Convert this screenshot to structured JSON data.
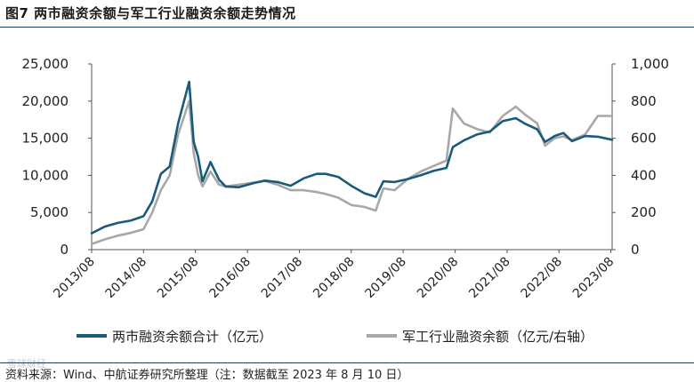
{
  "figure": {
    "title": "图7 两市融资余额与军工行业融资余额走势情况",
    "source": "资料来源：Wind、中航证券研究所整理（注：数据截至 2023 年 8 月 10 日）",
    "watermark": "雪球财经"
  },
  "colors": {
    "total_series": "#1a5a7a",
    "military_series": "#a8a8a8",
    "rule": "#1c3f5e",
    "axis": "#555555"
  },
  "chart_data": {
    "type": "line",
    "title": "图7 两市融资余额与军工行业融资余额走势情况",
    "x_type": "date",
    "xlim": [
      "2013-08-01",
      "2023-08-10"
    ],
    "x_tick_labels": [
      "2013/08",
      "2014/08",
      "2015/08",
      "2016/08",
      "2017/08",
      "2018/08",
      "2019/08",
      "2020/08",
      "2021/08",
      "2022/08",
      "2023/08"
    ],
    "x_ticks": [
      "2013-08-01",
      "2014-08-01",
      "2015-08-01",
      "2016-08-01",
      "2017-08-01",
      "2018-08-01",
      "2019-08-01",
      "2020-08-01",
      "2021-08-01",
      "2022-08-01",
      "2023-08-01"
    ],
    "y_left": {
      "label": "",
      "ylim": [
        0,
        25000
      ],
      "ticks": [
        0,
        5000,
        10000,
        15000,
        20000,
        25000
      ],
      "tick_labels": [
        "0",
        "5,000",
        "10,000",
        "15,000",
        "20,000",
        "25,000"
      ]
    },
    "y_right": {
      "label": "",
      "ylim": [
        0,
        1000
      ],
      "ticks": [
        0,
        200,
        400,
        600,
        800,
        1000
      ],
      "tick_labels": [
        "0",
        "200",
        "400",
        "600",
        "800",
        "1,000"
      ]
    },
    "grid": false,
    "legend_position": "bottom",
    "series": [
      {
        "name": "两市融资余额合计（亿元）",
        "axis": "left",
        "points": [
          [
            "2013-08-01",
            2200
          ],
          [
            "2013-11-01",
            3100
          ],
          [
            "2014-02-01",
            3600
          ],
          [
            "2014-05-01",
            3900
          ],
          [
            "2014-08-01",
            4500
          ],
          [
            "2014-10-01",
            6500
          ],
          [
            "2014-12-01",
            10200
          ],
          [
            "2015-02-01",
            11200
          ],
          [
            "2015-04-01",
            17000
          ],
          [
            "2015-06-18",
            22600
          ],
          [
            "2015-07-20",
            14500
          ],
          [
            "2015-08-20",
            12500
          ],
          [
            "2015-09-20",
            9200
          ],
          [
            "2015-11-15",
            11800
          ],
          [
            "2016-01-15",
            9400
          ],
          [
            "2016-03-01",
            8500
          ],
          [
            "2016-06-01",
            8400
          ],
          [
            "2016-09-01",
            8900
          ],
          [
            "2016-12-01",
            9300
          ],
          [
            "2017-03-01",
            9100
          ],
          [
            "2017-06-01",
            8600
          ],
          [
            "2017-09-01",
            9600
          ],
          [
            "2017-12-01",
            10200
          ],
          [
            "2018-02-01",
            10200
          ],
          [
            "2018-05-01",
            9800
          ],
          [
            "2018-08-01",
            8600
          ],
          [
            "2018-11-01",
            7600
          ],
          [
            "2019-01-20",
            7100
          ],
          [
            "2019-03-15",
            9200
          ],
          [
            "2019-06-01",
            9100
          ],
          [
            "2019-09-01",
            9500
          ],
          [
            "2019-12-01",
            10000
          ],
          [
            "2020-03-01",
            10600
          ],
          [
            "2020-06-01",
            11000
          ],
          [
            "2020-07-15",
            13800
          ],
          [
            "2020-10-01",
            14700
          ],
          [
            "2021-01-01",
            15500
          ],
          [
            "2021-04-01",
            15900
          ],
          [
            "2021-07-01",
            17300
          ],
          [
            "2021-10-01",
            17700
          ],
          [
            "2021-12-01",
            17000
          ],
          [
            "2022-03-01",
            16200
          ],
          [
            "2022-04-25",
            14500
          ],
          [
            "2022-07-01",
            15300
          ],
          [
            "2022-09-01",
            15700
          ],
          [
            "2022-11-01",
            14600
          ],
          [
            "2023-02-01",
            15300
          ],
          [
            "2023-05-01",
            15200
          ],
          [
            "2023-08-10",
            14800
          ]
        ]
      },
      {
        "name": "军工行业融资余额（亿元/右轴）",
        "axis": "right",
        "points": [
          [
            "2013-08-01",
            30
          ],
          [
            "2013-11-01",
            55
          ],
          [
            "2014-02-01",
            75
          ],
          [
            "2014-05-01",
            90
          ],
          [
            "2014-08-01",
            110
          ],
          [
            "2014-10-01",
            200
          ],
          [
            "2014-12-01",
            320
          ],
          [
            "2015-02-01",
            400
          ],
          [
            "2015-04-01",
            620
          ],
          [
            "2015-06-18",
            800
          ],
          [
            "2015-07-20",
            520
          ],
          [
            "2015-08-20",
            400
          ],
          [
            "2015-09-20",
            340
          ],
          [
            "2015-11-15",
            420
          ],
          [
            "2016-01-15",
            350
          ],
          [
            "2016-03-01",
            340
          ],
          [
            "2016-06-01",
            350
          ],
          [
            "2016-09-01",
            360
          ],
          [
            "2016-12-01",
            370
          ],
          [
            "2017-03-01",
            350
          ],
          [
            "2017-06-01",
            320
          ],
          [
            "2017-09-01",
            320
          ],
          [
            "2017-12-01",
            310
          ],
          [
            "2018-02-01",
            300
          ],
          [
            "2018-05-01",
            280
          ],
          [
            "2018-08-01",
            240
          ],
          [
            "2018-11-01",
            230
          ],
          [
            "2019-01-20",
            210
          ],
          [
            "2019-03-15",
            330
          ],
          [
            "2019-06-01",
            320
          ],
          [
            "2019-09-01",
            380
          ],
          [
            "2019-12-01",
            420
          ],
          [
            "2020-03-01",
            450
          ],
          [
            "2020-06-01",
            480
          ],
          [
            "2020-07-15",
            760
          ],
          [
            "2020-10-01",
            680
          ],
          [
            "2021-01-01",
            650
          ],
          [
            "2021-04-01",
            630
          ],
          [
            "2021-07-01",
            720
          ],
          [
            "2021-10-01",
            770
          ],
          [
            "2021-12-01",
            730
          ],
          [
            "2022-03-01",
            680
          ],
          [
            "2022-04-25",
            560
          ],
          [
            "2022-07-01",
            600
          ],
          [
            "2022-09-01",
            610
          ],
          [
            "2022-11-01",
            590
          ],
          [
            "2023-02-01",
            620
          ],
          [
            "2023-05-01",
            720
          ],
          [
            "2023-08-10",
            720
          ]
        ]
      }
    ]
  }
}
